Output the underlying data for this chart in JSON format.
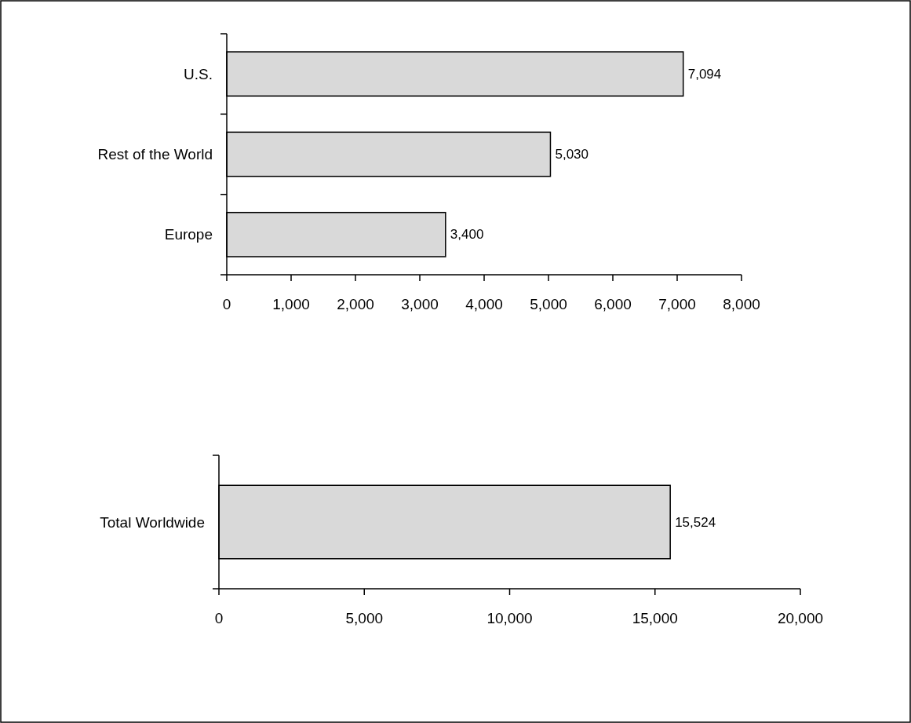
{
  "chart_data": [
    {
      "type": "bar",
      "orientation": "horizontal",
      "categories": [
        "U.S.",
        "Rest of the World",
        "Europe"
      ],
      "values": [
        7094,
        5030,
        3400
      ],
      "color": "#d9d9d9",
      "value_labels": [
        "7,094",
        "5,030",
        "3,400"
      ],
      "xlim": [
        0,
        8000
      ],
      "xticks": [
        0,
        {
          "value": 1000,
          "label": "1,000"
        },
        {
          "value": 2000,
          "label": "2,000"
        },
        {
          "value": 3000,
          "label": "3,000"
        },
        {
          "value": 4000,
          "label": "4,000"
        },
        {
          "value": 5000,
          "label": "5,000"
        },
        {
          "value": 6000,
          "label": "6,000"
        },
        {
          "value": 7000,
          "label": "7,000"
        },
        {
          "value": 8000,
          "label": "8,000"
        }
      ],
      "grid": false
    },
    {
      "type": "bar",
      "orientation": "horizontal",
      "categories": [
        "Total Worldwide"
      ],
      "values": [
        15524
      ],
      "color": "#d9d9d9",
      "value_labels": [
        "15,524"
      ],
      "xlim": [
        0,
        20000
      ],
      "xticks": [
        0,
        {
          "value": 5000,
          "label": "5,000"
        },
        {
          "value": 10000,
          "label": "10,000"
        },
        {
          "value": 15000,
          "label": "15,000"
        },
        {
          "value": 20000,
          "label": "20,000"
        }
      ],
      "grid": false
    }
  ]
}
